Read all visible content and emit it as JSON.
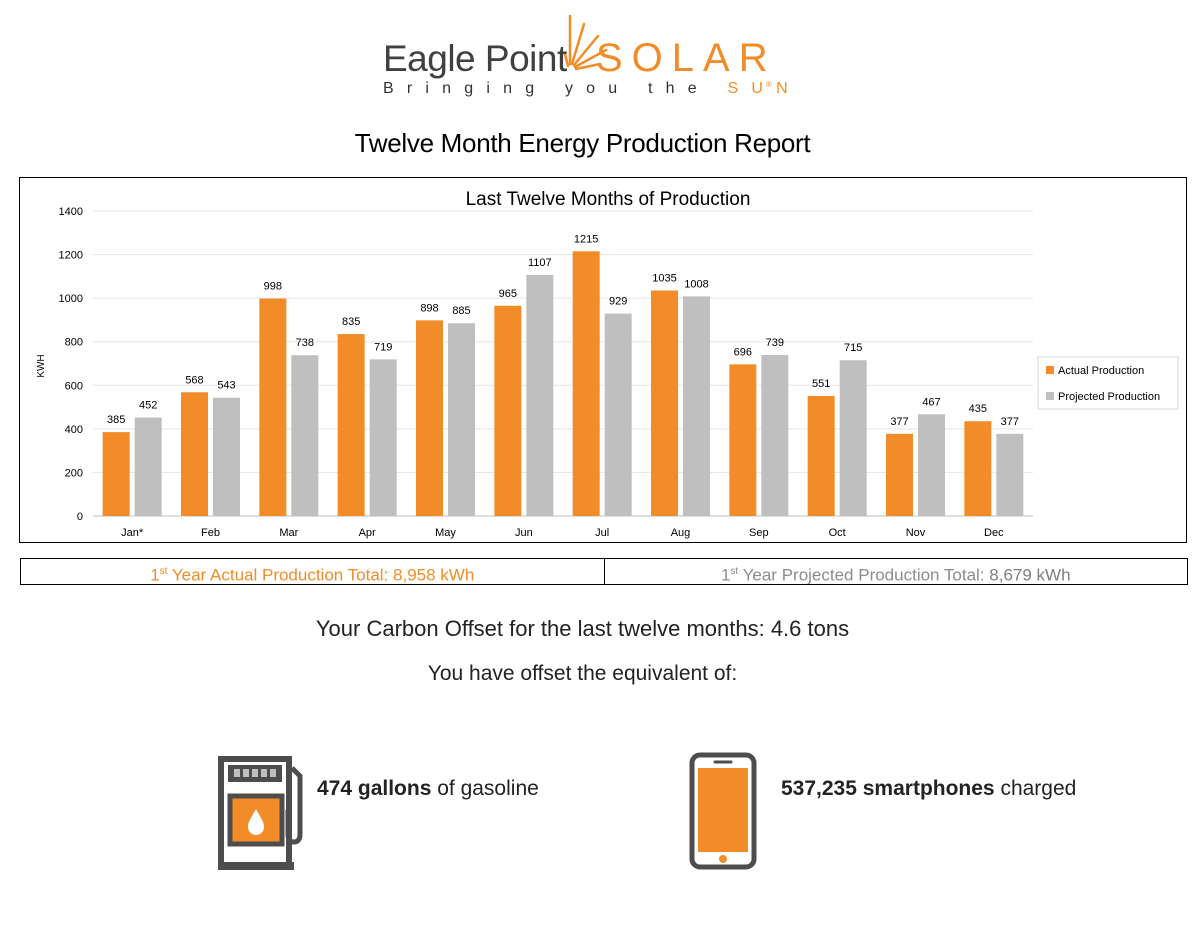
{
  "logo": {
    "brand_left": "Eagle Point",
    "brand_right": "SOLAR",
    "tagline_start": "Bringing you the",
    "tagline_end": "SUN",
    "registered": "®"
  },
  "report_title": "Twelve Month Energy Production Report",
  "chart_data": {
    "type": "bar",
    "title": "Last Twelve Months of Production",
    "xlabel": "",
    "ylabel": "KWH",
    "ylim": [
      0,
      1400
    ],
    "yticks": [
      0,
      200,
      400,
      600,
      800,
      1000,
      1200,
      1400
    ],
    "grid": true,
    "legend_position": "right",
    "categories": [
      "Jan*",
      "Feb",
      "Mar",
      "Apr",
      "May",
      "Jun",
      "Jul",
      "Aug",
      "Sep",
      "Oct",
      "Nov",
      "Dec"
    ],
    "series": [
      {
        "name": "Actual Production",
        "color": "#f28c28",
        "values": [
          385,
          568,
          998,
          835,
          898,
          965,
          1215,
          1035,
          696,
          551,
          377,
          435
        ]
      },
      {
        "name": "Projected Production",
        "color": "#bfbfbf",
        "values": [
          452,
          543,
          738,
          719,
          885,
          1107,
          929,
          1008,
          739,
          715,
          467,
          377
        ]
      }
    ]
  },
  "totals": {
    "actual_prefix": "1",
    "actual_sup": "st",
    "actual_label": " Year Actual Production Total: ",
    "actual_value": "8,958 kWh",
    "proj_prefix": "1",
    "proj_sup": "st",
    "proj_label": " Year Projected Production Total: ",
    "proj_value": "8,679 kWh"
  },
  "carbon": {
    "before": "Your ",
    "bold": "Carbon Offset",
    "after": " for the last twelve months:  4.6 tons"
  },
  "equivalent_heading": "You have offset the equivalent of:",
  "gasoline": {
    "bold": "474 gallons",
    "rest": " of gasoline"
  },
  "smartphones": {
    "bold": "537,235 smartphones",
    "rest": " charged"
  },
  "colors": {
    "accent": "#f28c28",
    "gray": "#bfbfbf",
    "icon_dark": "#4d4d4d"
  }
}
